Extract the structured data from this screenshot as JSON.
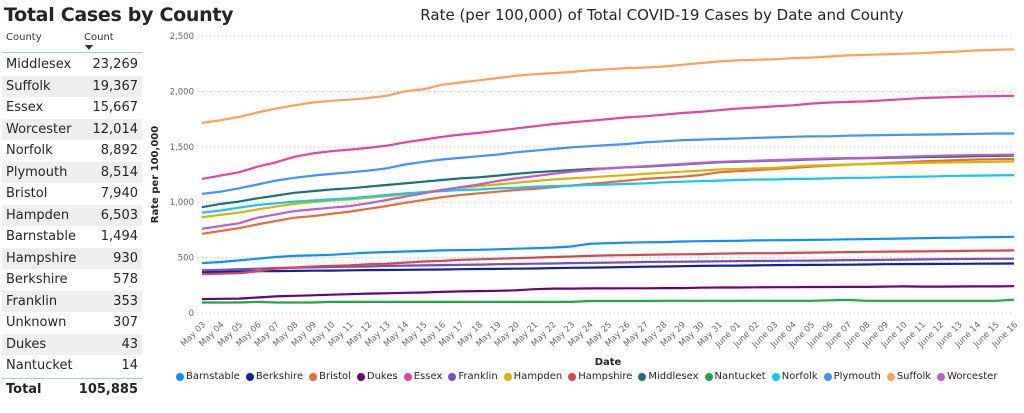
{
  "table": {
    "title": "Total Cases by County",
    "columns": [
      "County",
      "Count"
    ],
    "sort_indicator": "sort-descending-icon",
    "rows": [
      {
        "county": "Middlesex",
        "count": "23,269"
      },
      {
        "county": "Suffolk",
        "count": "19,367"
      },
      {
        "county": "Essex",
        "count": "15,667"
      },
      {
        "county": "Worcester",
        "count": "12,014"
      },
      {
        "county": "Norfolk",
        "count": "8,892"
      },
      {
        "county": "Plymouth",
        "count": "8,514"
      },
      {
        "county": "Bristol",
        "count": "7,940"
      },
      {
        "county": "Hampden",
        "count": "6,503"
      },
      {
        "county": "Barnstable",
        "count": "1,494"
      },
      {
        "county": "Hampshire",
        "count": "930"
      },
      {
        "county": "Berkshire",
        "count": "578"
      },
      {
        "county": "Franklin",
        "count": "353"
      },
      {
        "county": "Unknown",
        "count": "307"
      },
      {
        "county": "Dukes",
        "count": "43"
      },
      {
        "county": "Nantucket",
        "count": "14"
      }
    ],
    "total": {
      "label": "Total",
      "count": "105,885"
    }
  },
  "chart_data": {
    "type": "line",
    "title": "Rate (per 100,000) of Total COVID-19 Cases by Date and County",
    "xlabel": "Date",
    "ylabel": "Rate per 100,000",
    "ylim": [
      0,
      2500
    ],
    "yticks": [
      0,
      500,
      1000,
      1500,
      2000,
      2500
    ],
    "ytick_labels": [
      "0",
      "500",
      "1,000",
      "1,500",
      "2,000",
      "2,500"
    ],
    "grid": true,
    "legend": "bottom",
    "x": [
      "May 03",
      "May 04",
      "May 05",
      "May 06",
      "May 07",
      "May 08",
      "May 09",
      "May 10",
      "May 11",
      "May 12",
      "May 13",
      "May 14",
      "May 15",
      "May 16",
      "May 17",
      "May 18",
      "May 19",
      "May 20",
      "May 21",
      "May 22",
      "May 23",
      "May 24",
      "May 25",
      "May 26",
      "May 27",
      "May 28",
      "May 29",
      "May 30",
      "May 31",
      "June 01",
      "June 02",
      "June 03",
      "June 04",
      "June 05",
      "June 06",
      "June 07",
      "June 08",
      "June 09",
      "June 10",
      "June 11",
      "June 12",
      "June 13",
      "June 14",
      "June 15",
      "June 16"
    ],
    "series": [
      {
        "name": "Barnstable",
        "color": "#118DFF",
        "values": [
          450,
          460,
          475,
          490,
          505,
          515,
          520,
          525,
          535,
          545,
          550,
          555,
          560,
          565,
          568,
          570,
          575,
          580,
          585,
          590,
          600,
          625,
          630,
          635,
          638,
          640,
          645,
          648,
          650,
          652,
          655,
          657,
          658,
          660,
          662,
          665,
          667,
          670,
          672,
          675,
          678,
          680,
          683,
          685,
          688
        ]
      },
      {
        "name": "Berkshire",
        "color": "#12239E",
        "values": [
          370,
          372,
          375,
          377,
          378,
          380,
          382,
          383,
          385,
          387,
          388,
          390,
          392,
          393,
          395,
          397,
          398,
          400,
          402,
          405,
          408,
          410,
          412,
          415,
          418,
          420,
          422,
          425,
          427,
          428,
          430,
          432,
          433,
          434,
          435,
          436,
          438,
          440,
          441,
          442,
          443,
          444,
          445,
          446,
          447
        ]
      },
      {
        "name": "Bristol",
        "color": "#E66C37",
        "values": [
          715,
          740,
          765,
          800,
          830,
          860,
          875,
          895,
          915,
          940,
          965,
          995,
          1020,
          1045,
          1065,
          1080,
          1095,
          1110,
          1120,
          1135,
          1150,
          1165,
          1180,
          1195,
          1210,
          1220,
          1230,
          1245,
          1270,
          1280,
          1290,
          1300,
          1310,
          1320,
          1330,
          1338,
          1345,
          1352,
          1360,
          1368,
          1375,
          1380,
          1385,
          1388,
          1390
        ]
      },
      {
        "name": "Dukes",
        "color": "#6B007B",
        "values": [
          125,
          128,
          130,
          140,
          150,
          155,
          160,
          165,
          170,
          175,
          178,
          182,
          185,
          190,
          195,
          198,
          200,
          205,
          215,
          220,
          220,
          222,
          222,
          223,
          223,
          225,
          225,
          228,
          230,
          230,
          232,
          233,
          233,
          235,
          235,
          236,
          236,
          238,
          240,
          238,
          238,
          239,
          240,
          240,
          242
        ]
      },
      {
        "name": "Essex",
        "color": "#E044A7",
        "values": [
          1210,
          1240,
          1270,
          1320,
          1360,
          1410,
          1440,
          1460,
          1475,
          1490,
          1510,
          1540,
          1565,
          1590,
          1610,
          1625,
          1645,
          1665,
          1685,
          1705,
          1720,
          1735,
          1750,
          1765,
          1775,
          1790,
          1805,
          1815,
          1830,
          1845,
          1855,
          1865,
          1875,
          1890,
          1900,
          1905,
          1910,
          1920,
          1930,
          1940,
          1945,
          1950,
          1955,
          1958,
          1960
        ]
      },
      {
        "name": "Franklin",
        "color": "#744EC2",
        "values": [
          385,
          390,
          395,
          400,
          405,
          410,
          412,
          415,
          418,
          420,
          425,
          428,
          430,
          432,
          435,
          437,
          440,
          442,
          445,
          447,
          450,
          452,
          455,
          457,
          460,
          462,
          463,
          465,
          467,
          468,
          470,
          470,
          472,
          473,
          475,
          477,
          478,
          480,
          482,
          484,
          486,
          487,
          488,
          489,
          490
        ]
      },
      {
        "name": "Hampden",
        "color": "#D9B300",
        "values": [
          865,
          885,
          905,
          935,
          960,
          985,
          1000,
          1015,
          1025,
          1040,
          1055,
          1070,
          1090,
          1110,
          1130,
          1145,
          1160,
          1175,
          1190,
          1205,
          1215,
          1225,
          1235,
          1245,
          1255,
          1265,
          1275,
          1285,
          1295,
          1300,
          1305,
          1310,
          1320,
          1330,
          1335,
          1340,
          1345,
          1348,
          1350,
          1355,
          1358,
          1360,
          1362,
          1365,
          1368
        ]
      },
      {
        "name": "Hampshire",
        "color": "#D64550",
        "values": [
          350,
          355,
          360,
          375,
          400,
          410,
          420,
          425,
          430,
          440,
          445,
          455,
          465,
          470,
          480,
          485,
          490,
          495,
          500,
          505,
          510,
          515,
          520,
          522,
          525,
          528,
          530,
          532,
          535,
          538,
          540,
          540,
          542,
          545,
          547,
          550,
          552,
          553,
          555,
          556,
          558,
          560,
          562,
          563,
          565
        ]
      },
      {
        "name": "Middlesex",
        "color": "#197278",
        "values": [
          955,
          985,
          1005,
          1035,
          1060,
          1085,
          1100,
          1115,
          1125,
          1140,
          1155,
          1170,
          1185,
          1200,
          1215,
          1225,
          1240,
          1255,
          1270,
          1280,
          1290,
          1300,
          1305,
          1315,
          1320,
          1330,
          1340,
          1350,
          1360,
          1365,
          1370,
          1375,
          1380,
          1385,
          1390,
          1395,
          1398,
          1400,
          1403,
          1406,
          1410,
          1412,
          1415,
          1418,
          1420
        ]
      },
      {
        "name": "Nantucket",
        "color": "#1AAB40",
        "values": [
          95,
          95,
          95,
          100,
          95,
          95,
          95,
          100,
          100,
          100,
          100,
          100,
          100,
          100,
          100,
          100,
          100,
          100,
          100,
          100,
          100,
          108,
          108,
          108,
          108,
          110,
          110,
          110,
          110,
          110,
          110,
          110,
          110,
          110,
          115,
          118,
          110,
          110,
          110,
          110,
          110,
          110,
          110,
          110,
          120
        ]
      },
      {
        "name": "Norfolk",
        "color": "#15C6F4",
        "values": [
          905,
          925,
          950,
          975,
          990,
          1005,
          1015,
          1025,
          1035,
          1050,
          1065,
          1080,
          1090,
          1100,
          1110,
          1115,
          1125,
          1130,
          1140,
          1145,
          1150,
          1155,
          1160,
          1165,
          1170,
          1180,
          1185,
          1190,
          1195,
          1200,
          1205,
          1205,
          1210,
          1210,
          1215,
          1220,
          1220,
          1225,
          1228,
          1230,
          1235,
          1238,
          1240,
          1242,
          1245
        ]
      },
      {
        "name": "Plymouth",
        "color": "#4092FF",
        "values": [
          1075,
          1095,
          1125,
          1160,
          1195,
          1220,
          1240,
          1255,
          1270,
          1285,
          1305,
          1340,
          1365,
          1385,
          1400,
          1415,
          1430,
          1450,
          1465,
          1480,
          1495,
          1505,
          1515,
          1525,
          1540,
          1550,
          1560,
          1565,
          1570,
          1575,
          1580,
          1585,
          1590,
          1595,
          1595,
          1600,
          1603,
          1606,
          1608,
          1610,
          1612,
          1615,
          1617,
          1620,
          1620
        ]
      },
      {
        "name": "Suffolk",
        "color": "#FFA058",
        "values": [
          1715,
          1740,
          1770,
          1810,
          1845,
          1875,
          1900,
          1915,
          1925,
          1940,
          1960,
          2000,
          2020,
          2060,
          2080,
          2100,
          2120,
          2140,
          2155,
          2165,
          2175,
          2190,
          2200,
          2210,
          2215,
          2225,
          2240,
          2255,
          2270,
          2280,
          2285,
          2290,
          2300,
          2305,
          2315,
          2325,
          2330,
          2335,
          2340,
          2345,
          2355,
          2360,
          2370,
          2375,
          2380
        ]
      },
      {
        "name": "Worcester",
        "color": "#BE5DC9",
        "values": [
          760,
          785,
          810,
          860,
          890,
          920,
          935,
          950,
          965,
          990,
          1020,
          1050,
          1080,
          1110,
          1135,
          1160,
          1190,
          1215,
          1235,
          1255,
          1275,
          1290,
          1305,
          1315,
          1325,
          1335,
          1345,
          1355,
          1365,
          1370,
          1375,
          1380,
          1385,
          1390,
          1395,
          1398,
          1400,
          1405,
          1410,
          1415,
          1420,
          1423,
          1426,
          1428,
          1430
        ]
      }
    ]
  }
}
